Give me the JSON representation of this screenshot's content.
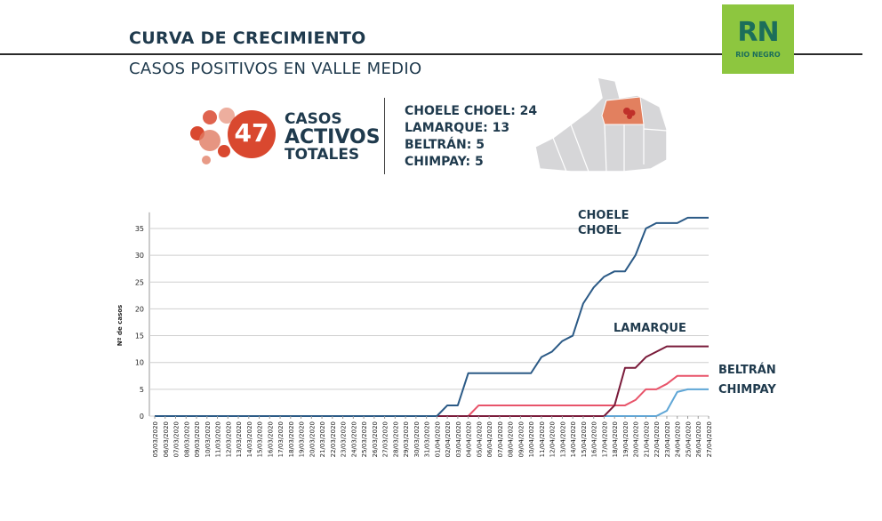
{
  "header": {
    "title": "CURVA DE CRECIMIENTO",
    "subtitle": "CASOS POSITIVOS EN VALLE MEDIO"
  },
  "logo": {
    "text": "RN",
    "subtext": "RIO NEGRO",
    "bg": "#8dc63f",
    "fg": "#1c6e5a"
  },
  "summary": {
    "total": "47",
    "line1": "CASOS",
    "line2": "ACTIVOS",
    "line3": "TOTALES",
    "locations": [
      "CHOELE CHOEL: 24",
      "LAMARQUE: 13",
      "BELTRÁN: 5",
      "CHIMPAY: 5"
    ]
  },
  "chart_data": {
    "type": "line",
    "ylabel": "Nº de casos",
    "xlabel": "",
    "ylim": [
      0,
      38
    ],
    "yticks": [
      0,
      5,
      10,
      15,
      20,
      25,
      30,
      35
    ],
    "grid": true,
    "x": [
      "05/03/2020",
      "06/03/2020",
      "07/03/2020",
      "08/03/2020",
      "09/03/2020",
      "10/03/2020",
      "11/03/2020",
      "12/03/2020",
      "13/03/2020",
      "14/03/2020",
      "15/03/2020",
      "16/03/2020",
      "17/03/2020",
      "18/03/2020",
      "19/03/2020",
      "20/03/2020",
      "21/03/2020",
      "22/03/2020",
      "23/03/2020",
      "24/03/2020",
      "25/03/2020",
      "26/03/2020",
      "27/03/2020",
      "28/03/2020",
      "29/03/2020",
      "30/03/2020",
      "31/03/2020",
      "01/04/2020",
      "02/04/2020",
      "03/04/2020",
      "04/04/2020",
      "05/04/2020",
      "06/04/2020",
      "07/04/2020",
      "08/04/2020",
      "09/04/2020",
      "10/04/2020",
      "11/04/2020",
      "12/04/2020",
      "13/04/2020",
      "14/04/2020",
      "15/04/2020",
      "16/04/2020",
      "17/04/2020",
      "18/04/2020",
      "19/04/2020",
      "20/04/2020",
      "21/04/2020",
      "22/04/2020",
      "23/04/2020",
      "24/04/2020",
      "25/04/2020",
      "26/04/2020",
      "27/04/2020"
    ],
    "series": [
      {
        "name": "CHOELE CHOEL",
        "label_lines": [
          "CHOELE",
          "CHOEL"
        ],
        "color": "#2b5a86",
        "values": [
          0,
          0,
          0,
          0,
          0,
          0,
          0,
          0,
          0,
          0,
          0,
          0,
          0,
          0,
          0,
          0,
          0,
          0,
          0,
          0,
          0,
          0,
          0,
          0,
          0,
          0,
          0,
          0,
          2,
          2,
          8,
          8,
          8,
          8,
          8,
          8,
          8,
          11,
          12,
          14,
          15,
          21,
          24,
          26,
          27,
          27,
          30,
          35,
          36,
          36,
          36,
          37,
          37,
          37
        ]
      },
      {
        "name": "LAMARQUE",
        "label_lines": [
          "LAMARQUE"
        ],
        "color": "#7a1b3a",
        "values": [
          0,
          0,
          0,
          0,
          0,
          0,
          0,
          0,
          0,
          0,
          0,
          0,
          0,
          0,
          0,
          0,
          0,
          0,
          0,
          0,
          0,
          0,
          0,
          0,
          0,
          0,
          0,
          0,
          0,
          0,
          0,
          0,
          0,
          0,
          0,
          0,
          0,
          0,
          0,
          0,
          0,
          0,
          0,
          0,
          2,
          9,
          9,
          11,
          12,
          13,
          13,
          13,
          13,
          13
        ]
      },
      {
        "name": "BELTRÁN",
        "label_lines": [
          "BELTRÁN"
        ],
        "color": "#e8546a",
        "values": [
          0,
          0,
          0,
          0,
          0,
          0,
          0,
          0,
          0,
          0,
          0,
          0,
          0,
          0,
          0,
          0,
          0,
          0,
          0,
          0,
          0,
          0,
          0,
          0,
          0,
          0,
          0,
          0,
          0,
          0,
          0,
          2,
          2,
          2,
          2,
          2,
          2,
          2,
          2,
          2,
          2,
          2,
          2,
          2,
          2,
          2,
          3,
          5,
          5,
          6,
          7.5,
          7.5,
          7.5,
          7.5
        ]
      },
      {
        "name": "CHIMPAY",
        "label_lines": [
          "CHIMPAY"
        ],
        "color": "#5fa6d6",
        "values": [
          0,
          0,
          0,
          0,
          0,
          0,
          0,
          0,
          0,
          0,
          0,
          0,
          0,
          0,
          0,
          0,
          0,
          0,
          0,
          0,
          0,
          0,
          0,
          0,
          0,
          0,
          0,
          0,
          0,
          0,
          0,
          0,
          0,
          0,
          0,
          0,
          0,
          0,
          0,
          0,
          0,
          0,
          0,
          0,
          0,
          0,
          0,
          0,
          0,
          1,
          4.5,
          5,
          5,
          5
        ]
      }
    ]
  }
}
